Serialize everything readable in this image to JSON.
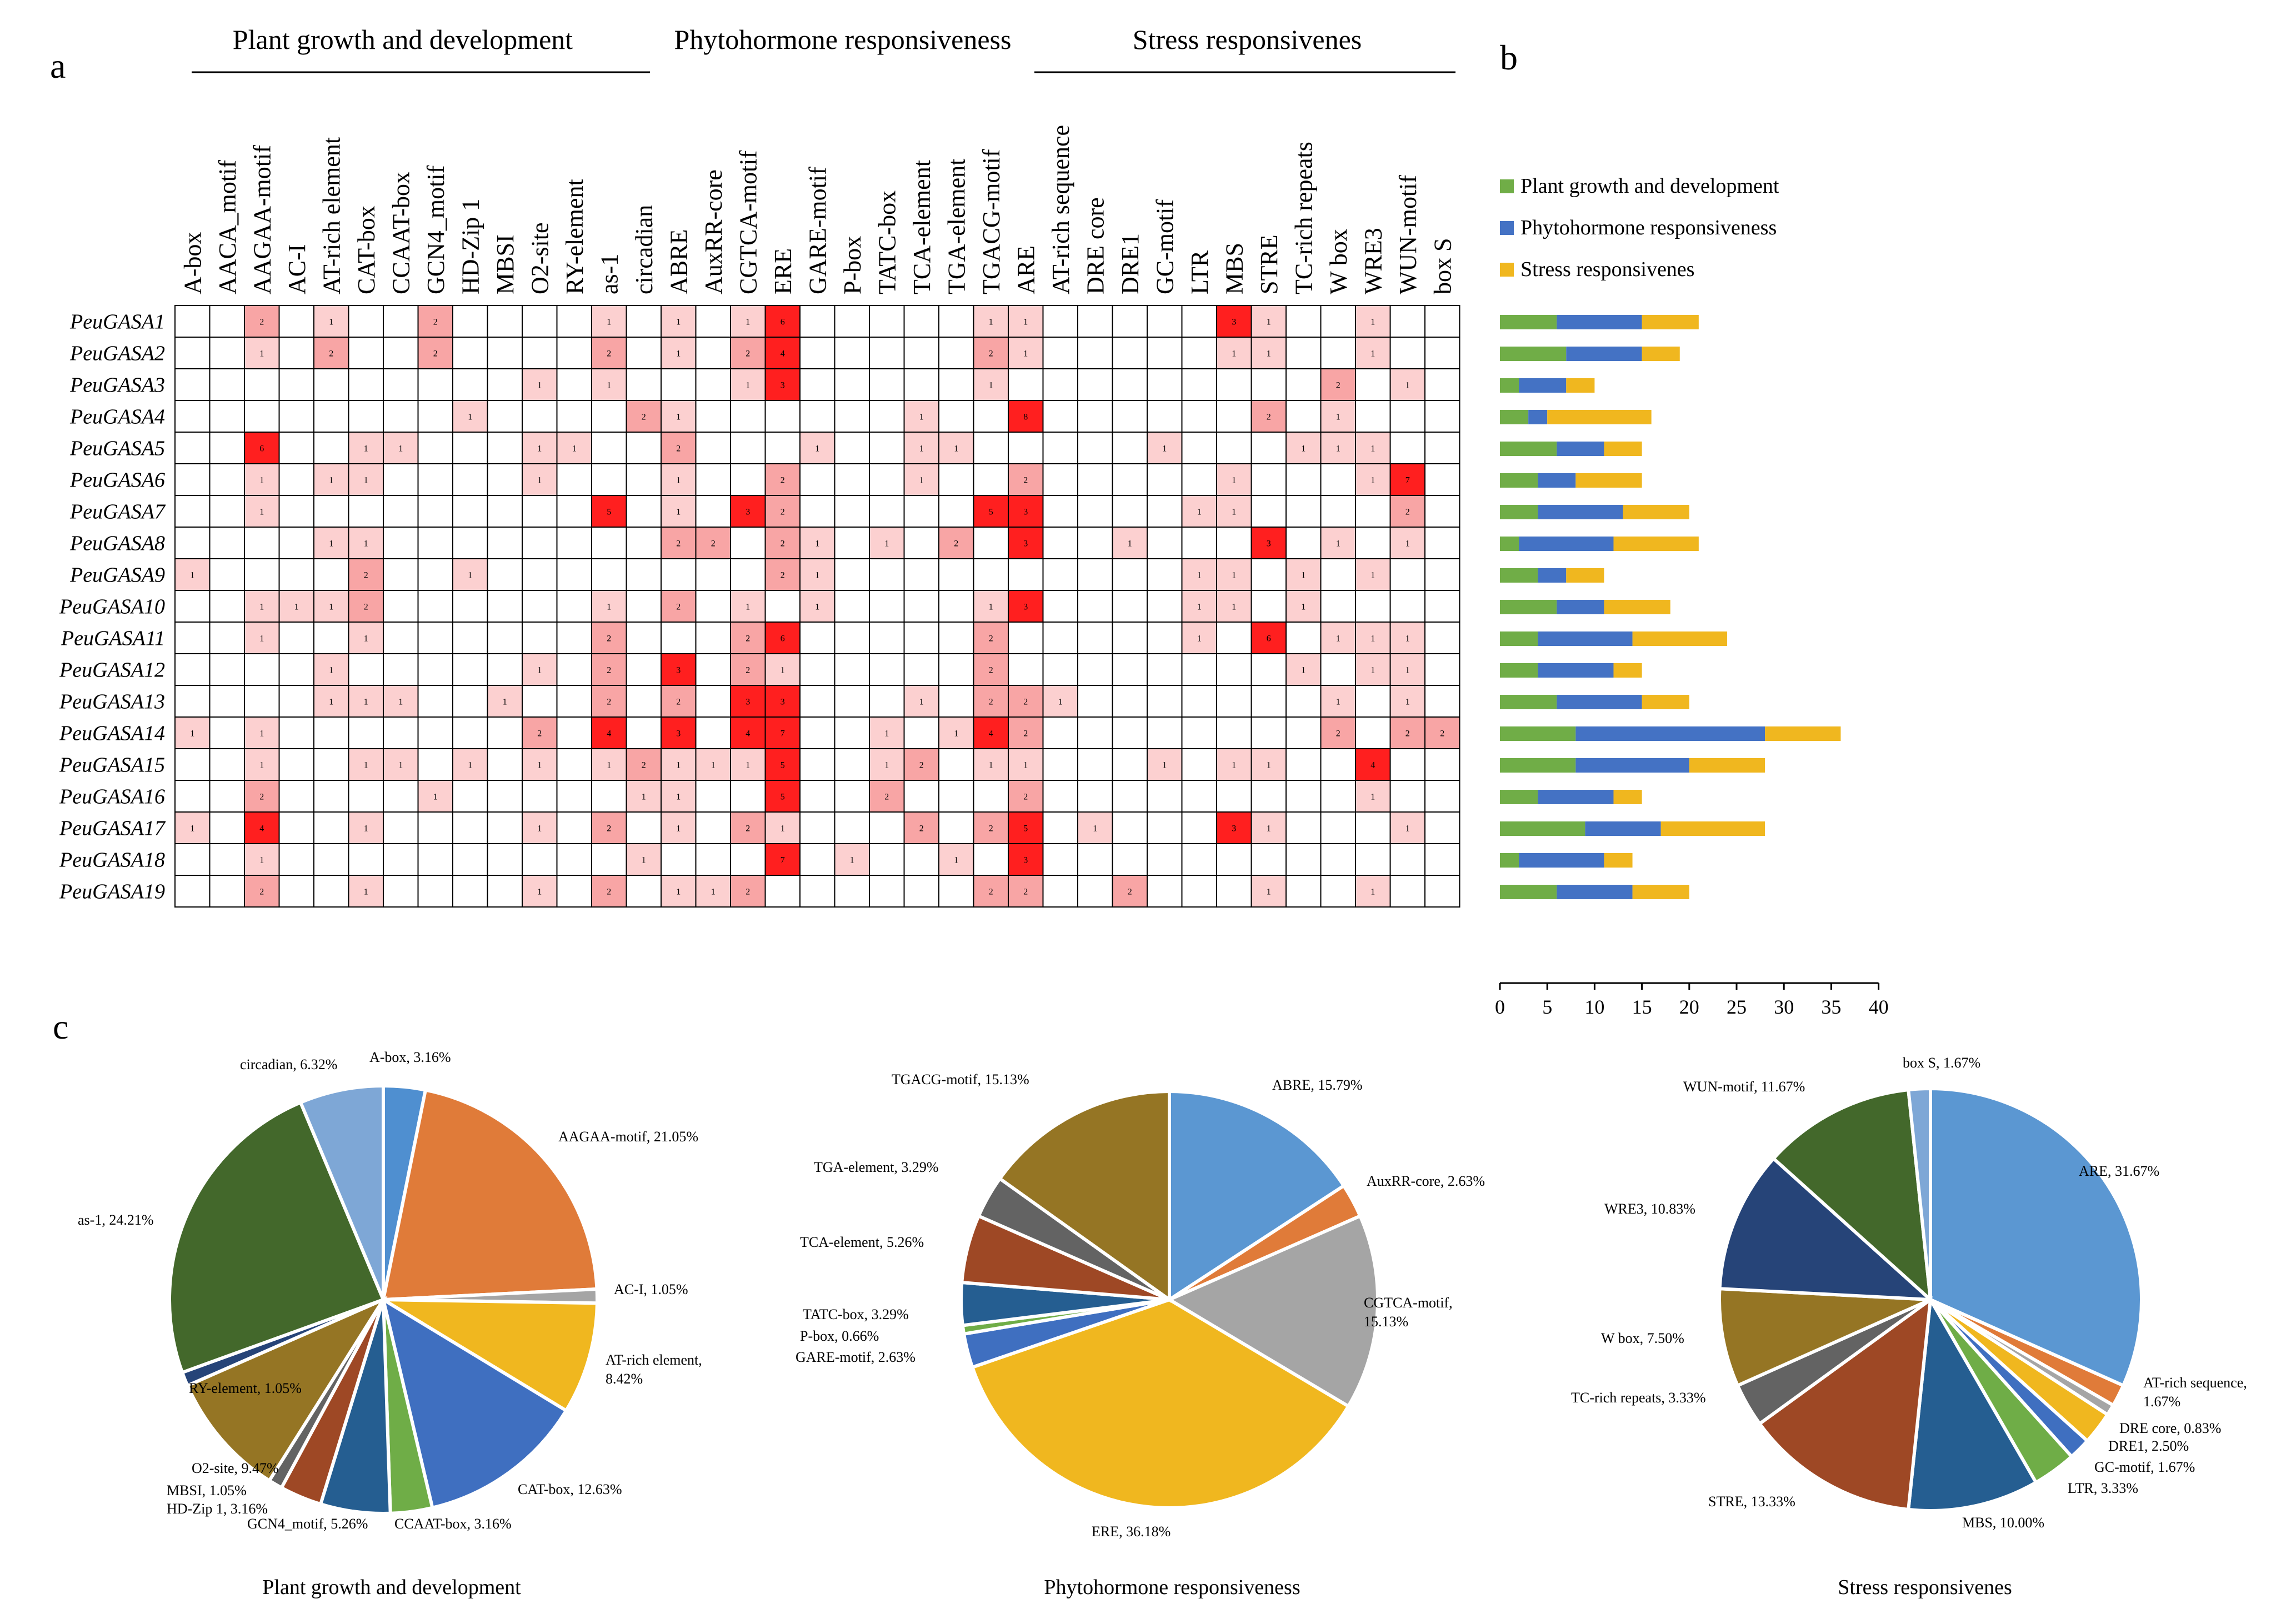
{
  "panels": {
    "a": "a",
    "b": "b",
    "c": "c"
  },
  "heatmap": {
    "groups": [
      {
        "title": "Plant growth and development"
      },
      {
        "title": "Phytohormone responsiveness"
      },
      {
        "title": "Stress responsivenes"
      }
    ],
    "columns": [
      "A-box",
      "AACA_motif",
      "AAGAA-motif",
      "AC-I",
      "AT-rich element",
      "CAT-box",
      "CCAAT-box",
      "GCN4_motif",
      "HD-Zip 1",
      "MBSI",
      "O2-site",
      "RY-element",
      "as-1",
      "circadian",
      "ABRE",
      "AuxRR-core",
      "CGTCA-motif",
      "ERE",
      "GARE-motif",
      "P-box",
      "TATC-box",
      "TCA-element",
      "TGA-element",
      "TGACG-motif",
      "ARE",
      "AT-rich sequence",
      "DRE core",
      "DRE1",
      "GC-motif",
      "LTR",
      "MBS",
      "STRE",
      "TC-rich repeats",
      "W box",
      "WRE3",
      "WUN-motif",
      "box S"
    ],
    "rows": [
      "PeuGASA1",
      "PeuGASA2",
      "PeuGASA3",
      "PeuGASA4",
      "PeuGASA5",
      "PeuGASA6",
      "PeuGASA7",
      "PeuGASA8",
      "PeuGASA9",
      "PeuGASA10",
      "PeuGASA11",
      "PeuGASA12",
      "PeuGASA13",
      "PeuGASA14",
      "PeuGASA15",
      "PeuGASA16",
      "PeuGASA17",
      "PeuGASA18",
      "PeuGASA19"
    ],
    "values": [
      [
        0,
        0,
        2,
        0,
        1,
        0,
        0,
        2,
        0,
        0,
        0,
        0,
        1,
        0,
        1,
        0,
        1,
        6,
        0,
        0,
        0,
        0,
        0,
        1,
        1,
        0,
        0,
        0,
        0,
        0,
        3,
        1,
        0,
        0,
        1,
        0,
        0
      ],
      [
        0,
        0,
        1,
        0,
        2,
        0,
        0,
        2,
        0,
        0,
        0,
        0,
        2,
        0,
        1,
        0,
        2,
        4,
        0,
        0,
        0,
        0,
        0,
        2,
        1,
        0,
        0,
        0,
        0,
        0,
        1,
        1,
        0,
        0,
        1,
        0,
        0
      ],
      [
        0,
        0,
        0,
        0,
        0,
        0,
        0,
        0,
        0,
        0,
        1,
        0,
        1,
        0,
        0,
        0,
        1,
        3,
        0,
        0,
        0,
        0,
        0,
        1,
        0,
        0,
        0,
        0,
        0,
        0,
        0,
        0,
        0,
        2,
        0,
        1,
        0
      ],
      [
        0,
        0,
        0,
        0,
        0,
        0,
        0,
        0,
        1,
        0,
        0,
        0,
        0,
        2,
        1,
        0,
        0,
        0,
        0,
        0,
        0,
        1,
        0,
        0,
        8,
        0,
        0,
        0,
        0,
        0,
        0,
        2,
        0,
        1,
        0,
        0,
        0
      ],
      [
        0,
        0,
        6,
        0,
        0,
        1,
        1,
        0,
        0,
        0,
        1,
        1,
        0,
        0,
        2,
        0,
        0,
        0,
        1,
        0,
        0,
        1,
        1,
        0,
        0,
        0,
        0,
        0,
        1,
        0,
        0,
        0,
        1,
        1,
        1,
        0,
        0
      ],
      [
        0,
        0,
        1,
        0,
        1,
        1,
        0,
        0,
        0,
        0,
        1,
        0,
        0,
        0,
        1,
        0,
        0,
        2,
        0,
        0,
        0,
        1,
        0,
        0,
        2,
        0,
        0,
        0,
        0,
        0,
        1,
        0,
        0,
        0,
        1,
        7,
        0
      ],
      [
        0,
        0,
        1,
        0,
        0,
        0,
        0,
        0,
        0,
        0,
        0,
        0,
        5,
        0,
        1,
        0,
        3,
        2,
        0,
        0,
        0,
        0,
        0,
        5,
        3,
        0,
        0,
        0,
        0,
        1,
        1,
        0,
        0,
        0,
        0,
        2,
        0
      ],
      [
        0,
        0,
        0,
        0,
        1,
        1,
        0,
        0,
        0,
        0,
        0,
        0,
        0,
        0,
        2,
        2,
        0,
        2,
        1,
        0,
        1,
        0,
        2,
        0,
        3,
        0,
        0,
        1,
        0,
        0,
        0,
        3,
        0,
        1,
        0,
        1,
        0
      ],
      [
        1,
        0,
        0,
        0,
        0,
        2,
        0,
        0,
        1,
        0,
        0,
        0,
        0,
        0,
        0,
        0,
        0,
        2,
        1,
        0,
        0,
        0,
        0,
        0,
        0,
        0,
        0,
        0,
        0,
        1,
        1,
        0,
        1,
        0,
        1,
        0,
        0
      ],
      [
        0,
        0,
        1,
        1,
        1,
        2,
        0,
        0,
        0,
        0,
        0,
        0,
        1,
        0,
        2,
        0,
        1,
        0,
        1,
        0,
        0,
        0,
        0,
        1,
        3,
        0,
        0,
        0,
        0,
        1,
        1,
        0,
        1,
        0,
        0,
        0,
        0
      ],
      [
        0,
        0,
        1,
        0,
        0,
        1,
        0,
        0,
        0,
        0,
        0,
        0,
        2,
        0,
        0,
        0,
        2,
        6,
        0,
        0,
        0,
        0,
        0,
        2,
        0,
        0,
        0,
        0,
        0,
        1,
        0,
        6,
        0,
        1,
        1,
        1,
        0
      ],
      [
        0,
        0,
        0,
        0,
        1,
        0,
        0,
        0,
        0,
        0,
        1,
        0,
        2,
        0,
        3,
        0,
        2,
        1,
        0,
        0,
        0,
        0,
        0,
        2,
        0,
        0,
        0,
        0,
        0,
        0,
        0,
        0,
        1,
        0,
        1,
        1,
        0
      ],
      [
        0,
        0,
        0,
        0,
        1,
        1,
        1,
        0,
        0,
        1,
        0,
        0,
        2,
        0,
        2,
        0,
        3,
        3,
        0,
        0,
        0,
        1,
        0,
        2,
        2,
        1,
        0,
        0,
        0,
        0,
        0,
        0,
        0,
        1,
        0,
        1,
        0
      ],
      [
        1,
        0,
        1,
        0,
        0,
        0,
        0,
        0,
        0,
        0,
        2,
        0,
        4,
        0,
        3,
        0,
        4,
        7,
        0,
        0,
        1,
        0,
        1,
        4,
        2,
        0,
        0,
        0,
        0,
        0,
        0,
        0,
        0,
        2,
        0,
        2,
        2
      ],
      [
        0,
        0,
        1,
        0,
        0,
        1,
        1,
        0,
        1,
        0,
        1,
        0,
        1,
        2,
        1,
        1,
        1,
        5,
        0,
        0,
        1,
        2,
        0,
        1,
        1,
        0,
        0,
        0,
        1,
        0,
        1,
        1,
        0,
        0,
        4,
        0,
        0
      ],
      [
        0,
        0,
        2,
        0,
        0,
        0,
        0,
        1,
        0,
        0,
        0,
        0,
        0,
        1,
        1,
        0,
        0,
        5,
        0,
        0,
        2,
        0,
        0,
        0,
        2,
        0,
        0,
        0,
        0,
        0,
        0,
        0,
        0,
        0,
        1,
        0,
        0
      ],
      [
        1,
        0,
        4,
        0,
        0,
        1,
        0,
        0,
        0,
        0,
        1,
        0,
        2,
        0,
        1,
        0,
        2,
        1,
        0,
        0,
        0,
        2,
        0,
        2,
        5,
        0,
        1,
        0,
        0,
        0,
        3,
        1,
        0,
        0,
        0,
        1,
        0
      ],
      [
        0,
        0,
        1,
        0,
        0,
        0,
        0,
        0,
        0,
        0,
        0,
        0,
        0,
        1,
        0,
        0,
        0,
        7,
        0,
        1,
        0,
        0,
        1,
        0,
        3,
        0,
        0,
        0,
        0,
        0,
        0,
        0,
        0,
        0,
        0,
        0,
        0
      ],
      [
        0,
        0,
        2,
        0,
        0,
        1,
        0,
        0,
        0,
        0,
        1,
        0,
        2,
        0,
        1,
        1,
        2,
        0,
        0,
        0,
        0,
        0,
        0,
        2,
        2,
        0,
        0,
        2,
        0,
        0,
        0,
        1,
        0,
        0,
        1,
        0,
        0
      ]
    ]
  },
  "chart_data": [
    {
      "type": "heatmap",
      "title": "",
      "groups": [
        "Plant growth and development",
        "Phytohormone responsiveness",
        "Stress responsivenes"
      ]
    },
    {
      "type": "bar",
      "orientation": "horizontal",
      "stacked": true,
      "categories": [
        "PeuGASA1",
        "PeuGASA2",
        "PeuGASA3",
        "PeuGASA4",
        "PeuGASA5",
        "PeuGASA6",
        "PeuGASA7",
        "PeuGASA8",
        "PeuGASA9",
        "PeuGASA10",
        "PeuGASA11",
        "PeuGASA12",
        "PeuGASA13",
        "PeuGASA14",
        "PeuGASA15",
        "PeuGASA16",
        "PeuGASA17",
        "PeuGASA18",
        "PeuGASA19"
      ],
      "series": [
        {
          "name": "Plant growth and development",
          "color": "#70ad47",
          "values": [
            6,
            7,
            2,
            3,
            6,
            4,
            4,
            2,
            4,
            6,
            4,
            4,
            6,
            8,
            8,
            4,
            9,
            2,
            6
          ]
        },
        {
          "name": "Phytohormone responsiveness",
          "color": "#4472c4",
          "values": [
            9,
            8,
            5,
            2,
            5,
            4,
            9,
            10,
            3,
            5,
            10,
            8,
            9,
            20,
            12,
            8,
            8,
            9,
            8
          ]
        },
        {
          "name": "Stress responsivenes",
          "color": "#f0b71f",
          "values": [
            6,
            4,
            3,
            11,
            4,
            7,
            7,
            9,
            4,
            7,
            10,
            3,
            5,
            8,
            8,
            3,
            11,
            3,
            6
          ]
        }
      ],
      "xlim": [
        0,
        40
      ],
      "xticks": [
        0,
        5,
        10,
        15,
        20,
        25,
        30,
        35,
        40
      ],
      "legend": "top-left"
    },
    {
      "type": "pie",
      "title": "Plant growth and development",
      "slices": [
        {
          "label": "A-box, 3.16%",
          "value": 3.16,
          "color": "#4f8fd0"
        },
        {
          "label": "AAGAA-motif, 21.05%",
          "value": 21.05,
          "color": "#e07b39"
        },
        {
          "label": "AC-I, 1.05%",
          "value": 1.05,
          "color": "#a5a5a5"
        },
        {
          "label": "AT-rich element, 8.42%",
          "value": 8.42,
          "color": "#f0b71f"
        },
        {
          "label": "CAT-box, 12.63%",
          "value": 12.63,
          "color": "#3f6fc0"
        },
        {
          "label": "CCAAT-box, 3.16%",
          "value": 3.16,
          "color": "#6fad47"
        },
        {
          "label": "GCN4_motif, 5.26%",
          "value": 5.26,
          "color": "#255e91"
        },
        {
          "label": "HD-Zip 1, 3.16%",
          "value": 3.16,
          "color": "#9e4825"
        },
        {
          "label": "MBSI, 1.05%",
          "value": 1.05,
          "color": "#636363"
        },
        {
          "label": "O2-site, 9.47%",
          "value": 9.47,
          "color": "#957524"
        },
        {
          "label": "RY-element, 1.05%",
          "value": 1.05,
          "color": "#264478"
        },
        {
          "label": "as-1, 24.21%",
          "value": 24.21,
          "color": "#43682b"
        },
        {
          "label": "circadian, 6.32%",
          "value": 6.32,
          "color": "#7ea7d6"
        }
      ]
    },
    {
      "type": "pie",
      "title": "Phytohormone responsiveness",
      "slices": [
        {
          "label": "ABRE, 15.79%",
          "value": 15.79,
          "color": "#5b97d2"
        },
        {
          "label": "AuxRR-core, 2.63%",
          "value": 2.63,
          "color": "#e07b39"
        },
        {
          "label": "CGTCA-motif, 15.13%",
          "value": 15.13,
          "color": "#a5a5a5"
        },
        {
          "label": "ERE, 36.18%",
          "value": 36.18,
          "color": "#f0b71f"
        },
        {
          "label": "GARE-motif, 2.63%",
          "value": 2.63,
          "color": "#3f6fc0"
        },
        {
          "label": "P-box, 0.66%",
          "value": 0.66,
          "color": "#6fad47"
        },
        {
          "label": "TATC-box, 3.29%",
          "value": 3.29,
          "color": "#255e91"
        },
        {
          "label": "TCA-element, 5.26%",
          "value": 5.26,
          "color": "#9e4825"
        },
        {
          "label": "TGA-element, 3.29%",
          "value": 3.29,
          "color": "#636363"
        },
        {
          "label": "TGACG-motif, 15.13%",
          "value": 15.13,
          "color": "#957524"
        }
      ]
    },
    {
      "type": "pie",
      "title": "Stress responsivenes",
      "slices": [
        {
          "label": "ARE, 31.67%",
          "value": 31.67,
          "color": "#5b97d2"
        },
        {
          "label": "AT-rich sequence, 1.67%",
          "value": 1.67,
          "color": "#e07b39"
        },
        {
          "label": "DRE core, 0.83%",
          "value": 0.83,
          "color": "#a5a5a5"
        },
        {
          "label": "DRE1, 2.50%",
          "value": 2.5,
          "color": "#f0b71f"
        },
        {
          "label": "GC-motif, 1.67%",
          "value": 1.67,
          "color": "#3f6fc0"
        },
        {
          "label": "LTR, 3.33%",
          "value": 3.33,
          "color": "#6fad47"
        },
        {
          "label": "MBS, 10.00%",
          "value": 10.0,
          "color": "#255e91"
        },
        {
          "label": "STRE, 13.33%",
          "value": 13.33,
          "color": "#9e4825"
        },
        {
          "label": "TC-rich repeats, 3.33%",
          "value": 3.33,
          "color": "#636363"
        },
        {
          "label": "W box, 7.50%",
          "value": 7.5,
          "color": "#957524"
        },
        {
          "label": "WRE3, 10.83%",
          "value": 10.83,
          "color": "#264478"
        },
        {
          "label": "WUN-motif, 11.67%",
          "value": 11.67,
          "color": "#43682b"
        },
        {
          "label": "box S, 1.67%",
          "value": 1.67,
          "color": "#7ea7d6"
        }
      ]
    }
  ]
}
